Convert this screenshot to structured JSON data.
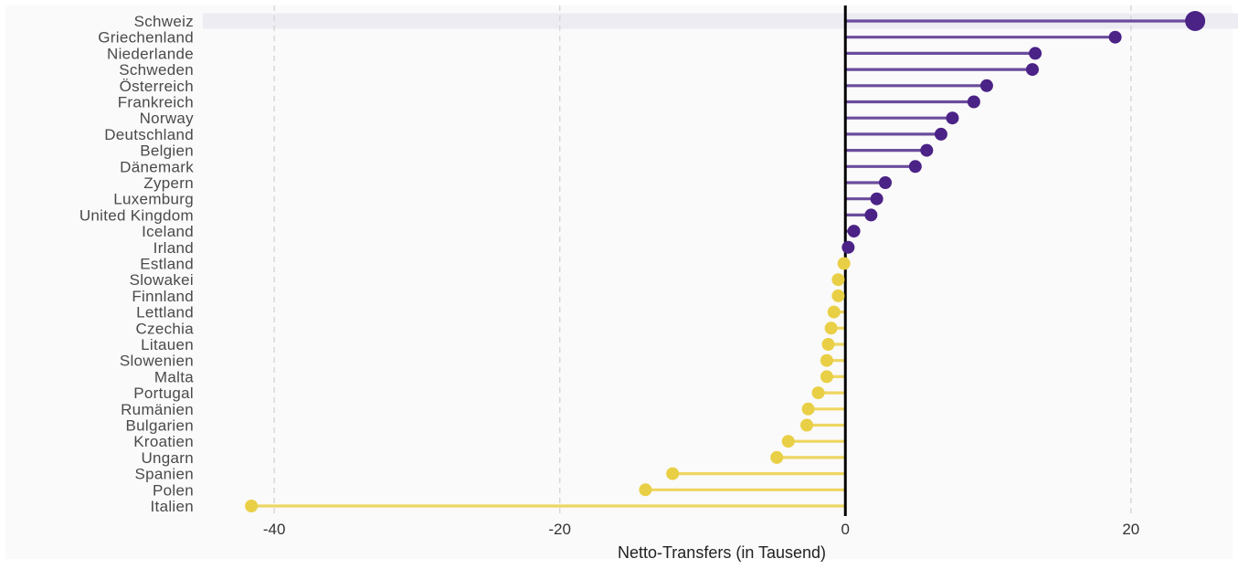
{
  "chart_data": {
    "type": "lollipop",
    "orientation": "horizontal",
    "xlabel": "Netto-Transfers (in Tausend)",
    "ylabel": "",
    "xlim": [
      -45,
      27.5
    ],
    "xticks": [
      -40,
      -20,
      0,
      20
    ],
    "xtick_labels": [
      "-40",
      "-20",
      "0",
      "20"
    ],
    "grid": "vertical dashed",
    "highlighted_category": "Schweiz",
    "colors": {
      "positive": "#4b2286",
      "positive_line": "#6a4c9c",
      "negative": "#e9cf45",
      "negative_line": "#eed661",
      "zero_line": "#000000",
      "panel_background": "#fafafa",
      "highlight_band": "#ececf2",
      "grid": "#d6d6d6"
    },
    "categories": [
      "Schweiz",
      "Griechenland",
      "Niederlande",
      "Schweden",
      "Österreich",
      "Frankreich",
      "Norway",
      "Deutschland",
      "Belgien",
      "Dänemark",
      "Zypern",
      "Luxemburg",
      "United Kingdom",
      "Iceland",
      "Irland",
      "Estland",
      "Slowakei",
      "Finnland",
      "Lettland",
      "Czechia",
      "Litauen",
      "Slowenien",
      "Malta",
      "Portugal",
      "Rumänien",
      "Bulgarien",
      "Kroatien",
      "Ungarn",
      "Spanien",
      "Polen",
      "Italien"
    ],
    "values": [
      24.5,
      18.9,
      13.3,
      13.1,
      9.9,
      9.0,
      7.5,
      6.7,
      5.7,
      4.9,
      2.8,
      2.2,
      1.8,
      0.6,
      0.2,
      -0.1,
      -0.5,
      -0.5,
      -0.8,
      -1.0,
      -1.2,
      -1.3,
      -1.3,
      -1.9,
      -2.6,
      -2.7,
      -4.0,
      -4.8,
      -12.1,
      -14.0,
      -41.6
    ]
  }
}
